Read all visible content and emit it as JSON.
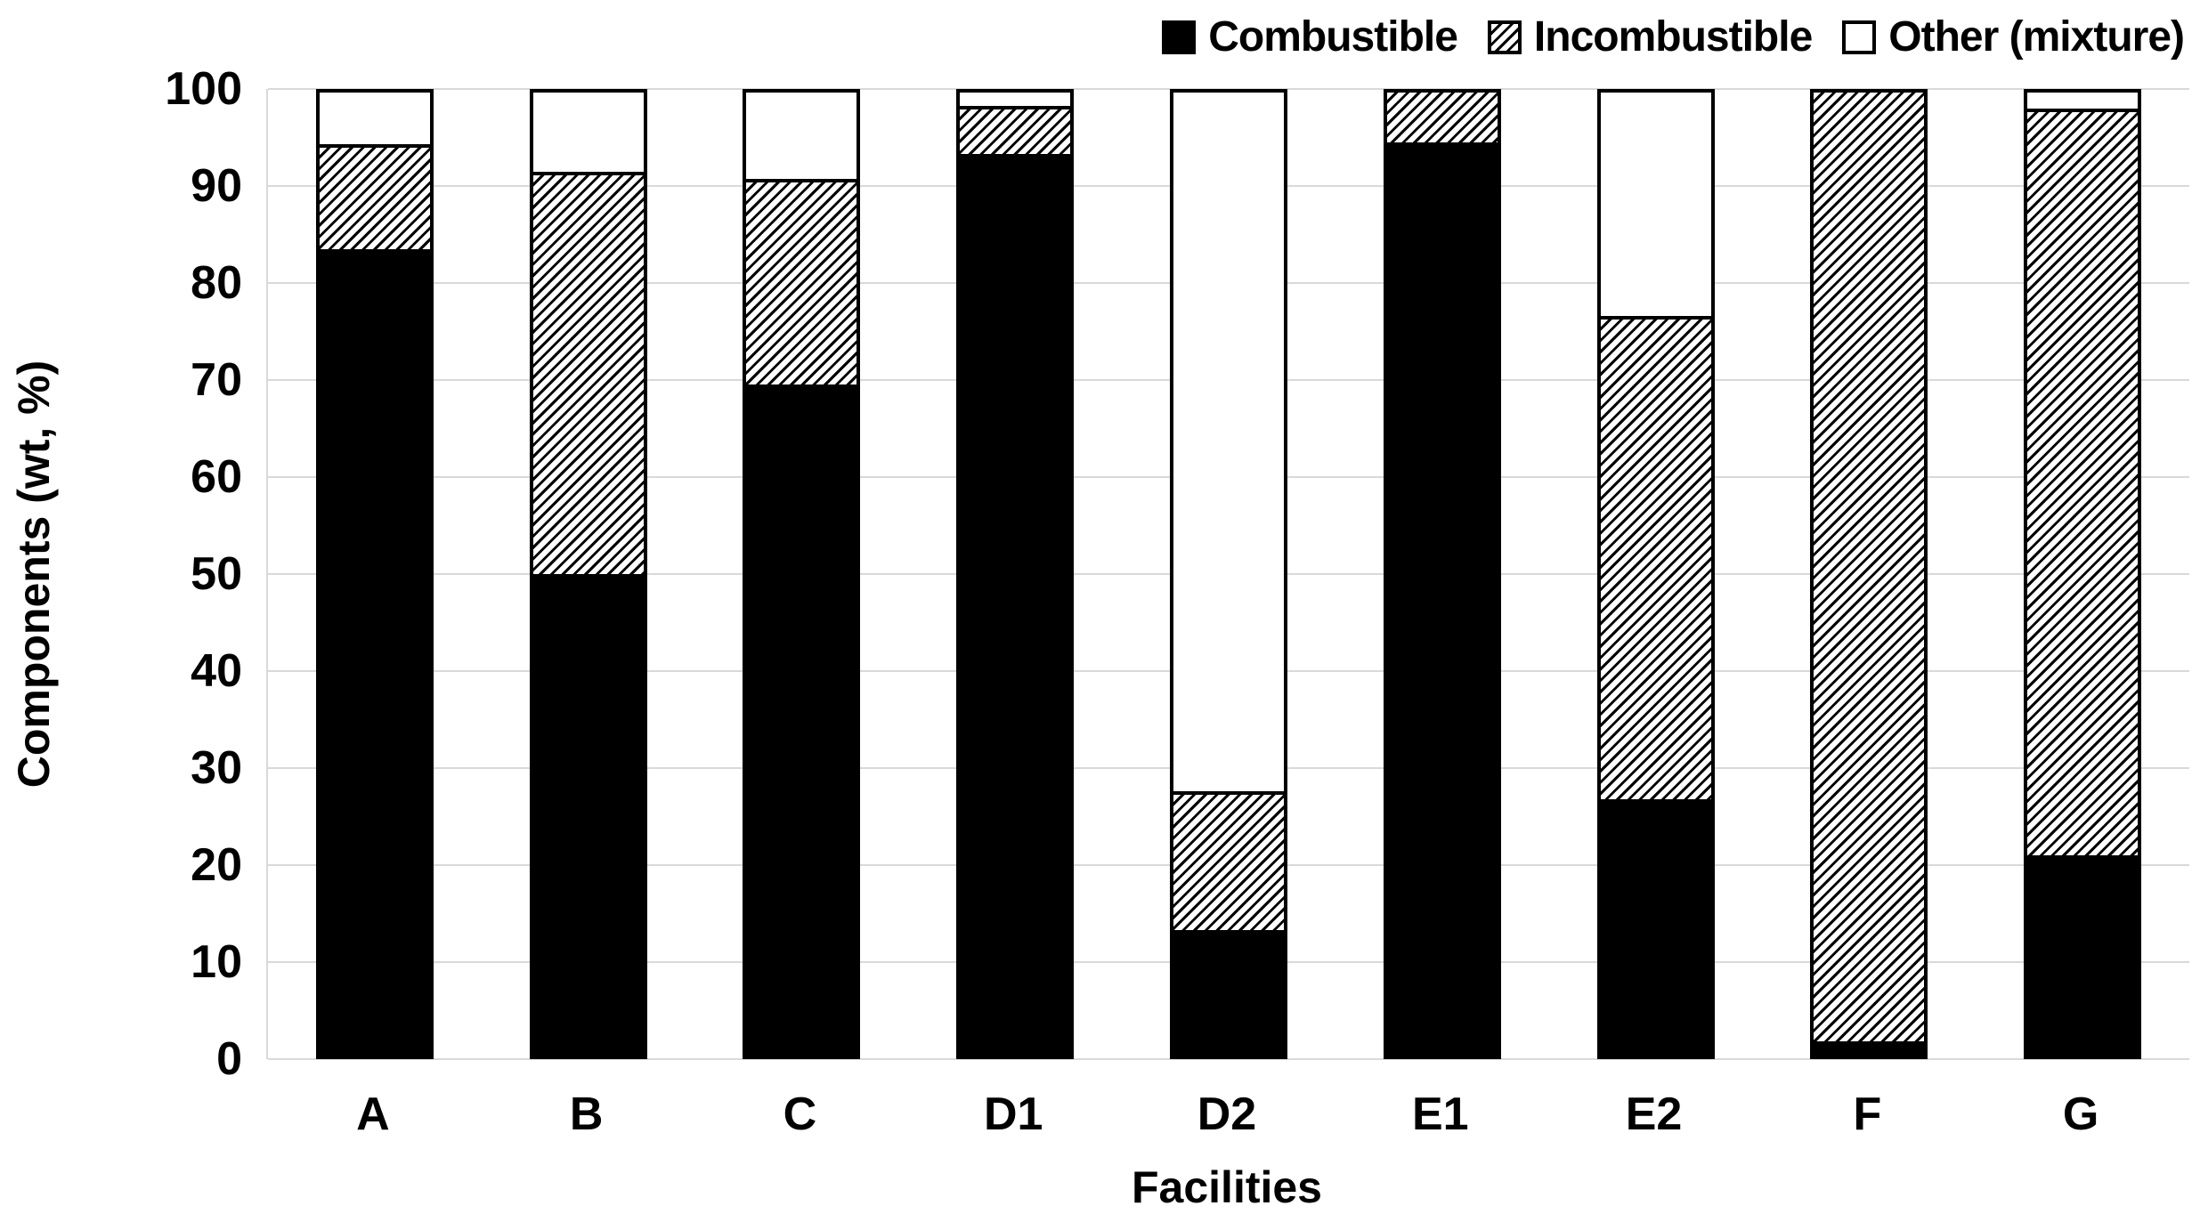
{
  "chart_data": {
    "type": "bar",
    "stacked": true,
    "orientation": "vertical",
    "categories": [
      "A",
      "B",
      "C",
      "D1",
      "D2",
      "E1",
      "E2",
      "F",
      "G"
    ],
    "series": [
      {
        "name": "Combustible",
        "pattern": "solid-black",
        "values": [
          83.5,
          50.0,
          69.5,
          93.3,
          13.3,
          94.5,
          26.8,
          1.8,
          21.0
        ]
      },
      {
        "name": "Incombustible",
        "pattern": "diagonal-hatch",
        "values": [
          10.8,
          41.5,
          21.2,
          5.0,
          14.3,
          5.5,
          49.8,
          98.2,
          77.0
        ]
      },
      {
        "name": "Other (mixture)",
        "pattern": "white-outline",
        "values": [
          5.7,
          8.5,
          9.3,
          1.7,
          72.4,
          0.0,
          23.4,
          0.0,
          2.0
        ]
      }
    ],
    "xlabel": "Facilities",
    "ylabel": "Components (wt, %)",
    "ylim": [
      0,
      100
    ],
    "yticks": [
      0,
      10,
      20,
      30,
      40,
      50,
      60,
      70,
      80,
      90,
      100
    ],
    "grid": true,
    "legend_position": "top-right"
  },
  "colors": {
    "bar_fill": "#000000",
    "bar_border": "#000000",
    "gridline": "#d9d9d9",
    "background": "#ffffff",
    "text": "#000000"
  }
}
